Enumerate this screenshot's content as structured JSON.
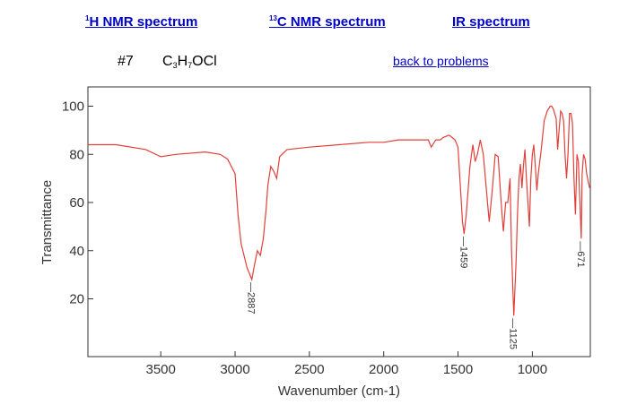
{
  "nav": {
    "h_nmr": {
      "sup": "1",
      "label": "H NMR spectrum"
    },
    "c_nmr": {
      "sup": "13",
      "label": "C NMR spectrum"
    },
    "ir": {
      "label": "IR spectrum"
    }
  },
  "problem": {
    "number": "#7",
    "formula_parts": [
      "C",
      "3",
      "H",
      "7",
      "OCl"
    ],
    "back_label": "back to problems"
  },
  "colors": {
    "link": "#0000cc",
    "trace": "#e0403a",
    "axis": "#333333"
  },
  "chart_data": {
    "type": "line",
    "xlabel": "Wavenumber (cm-1)",
    "ylabel": "Transmittance",
    "xlim": [
      3990,
      610
    ],
    "ylim": [
      -4,
      108
    ],
    "x_reversed": true,
    "x_ticks": [
      3500,
      3000,
      2500,
      2000,
      1500,
      1000
    ],
    "y_ticks": [
      20,
      40,
      60,
      80,
      100
    ],
    "grid": false,
    "series": [
      {
        "x": [
          3990,
          3800,
          3600,
          3500,
          3400,
          3200,
          3100,
          3050,
          3000,
          2980,
          2960,
          2940,
          2920,
          2900,
          2887,
          2870,
          2850,
          2830,
          2810,
          2790,
          2780,
          2760,
          2740,
          2720,
          2700,
          2650,
          2500,
          2300,
          2100,
          2000,
          1900,
          1800,
          1750,
          1700,
          1680,
          1650,
          1620,
          1600,
          1560,
          1540,
          1520,
          1500,
          1480,
          1470,
          1459,
          1445,
          1420,
          1400,
          1385,
          1370,
          1350,
          1330,
          1310,
          1290,
          1270,
          1250,
          1230,
          1210,
          1195,
          1180,
          1165,
          1150,
          1140,
          1125,
          1110,
          1100,
          1090,
          1080,
          1070,
          1060,
          1050,
          1040,
          1030,
          1020,
          1010,
          1000,
          990,
          980,
          970,
          960,
          940,
          920,
          900,
          880,
          870,
          860,
          850,
          840,
          830,
          820,
          810,
          800,
          790,
          780,
          770,
          760,
          750,
          740,
          730,
          720,
          710,
          700,
          690,
          680,
          671,
          665,
          655,
          645,
          635,
          625,
          615
        ],
        "y": [
          84,
          84,
          82,
          79,
          80,
          81,
          80,
          78,
          72,
          55,
          43,
          38,
          33,
          30,
          28,
          34,
          40,
          38,
          45,
          58,
          67,
          75,
          73,
          70,
          79,
          82,
          83,
          84,
          85,
          85,
          86,
          86,
          86,
          86,
          83,
          86,
          86,
          87,
          88,
          87,
          86,
          83,
          62,
          52,
          47,
          55,
          75,
          84,
          77,
          80,
          86,
          80,
          66,
          52,
          65,
          80,
          79,
          60,
          48,
          60,
          60,
          70,
          40,
          13,
          35,
          55,
          70,
          76,
          66,
          75,
          82,
          70,
          60,
          50,
          70,
          80,
          84,
          75,
          65,
          72,
          82,
          94,
          98,
          100,
          100,
          99,
          97,
          95,
          82,
          90,
          98,
          97,
          94,
          80,
          70,
          80,
          97,
          97,
          93,
          70,
          55,
          80,
          77,
          60,
          45,
          72,
          80,
          78,
          72,
          69,
          66
        ]
      }
    ],
    "annotations": [
      {
        "x": 2887,
        "y": 28,
        "label": "2887"
      },
      {
        "x": 1459,
        "y": 47,
        "label": "1459"
      },
      {
        "x": 1125,
        "y": 13,
        "label": "1125"
      },
      {
        "x": 671,
        "y": 45,
        "label": "671"
      }
    ]
  }
}
